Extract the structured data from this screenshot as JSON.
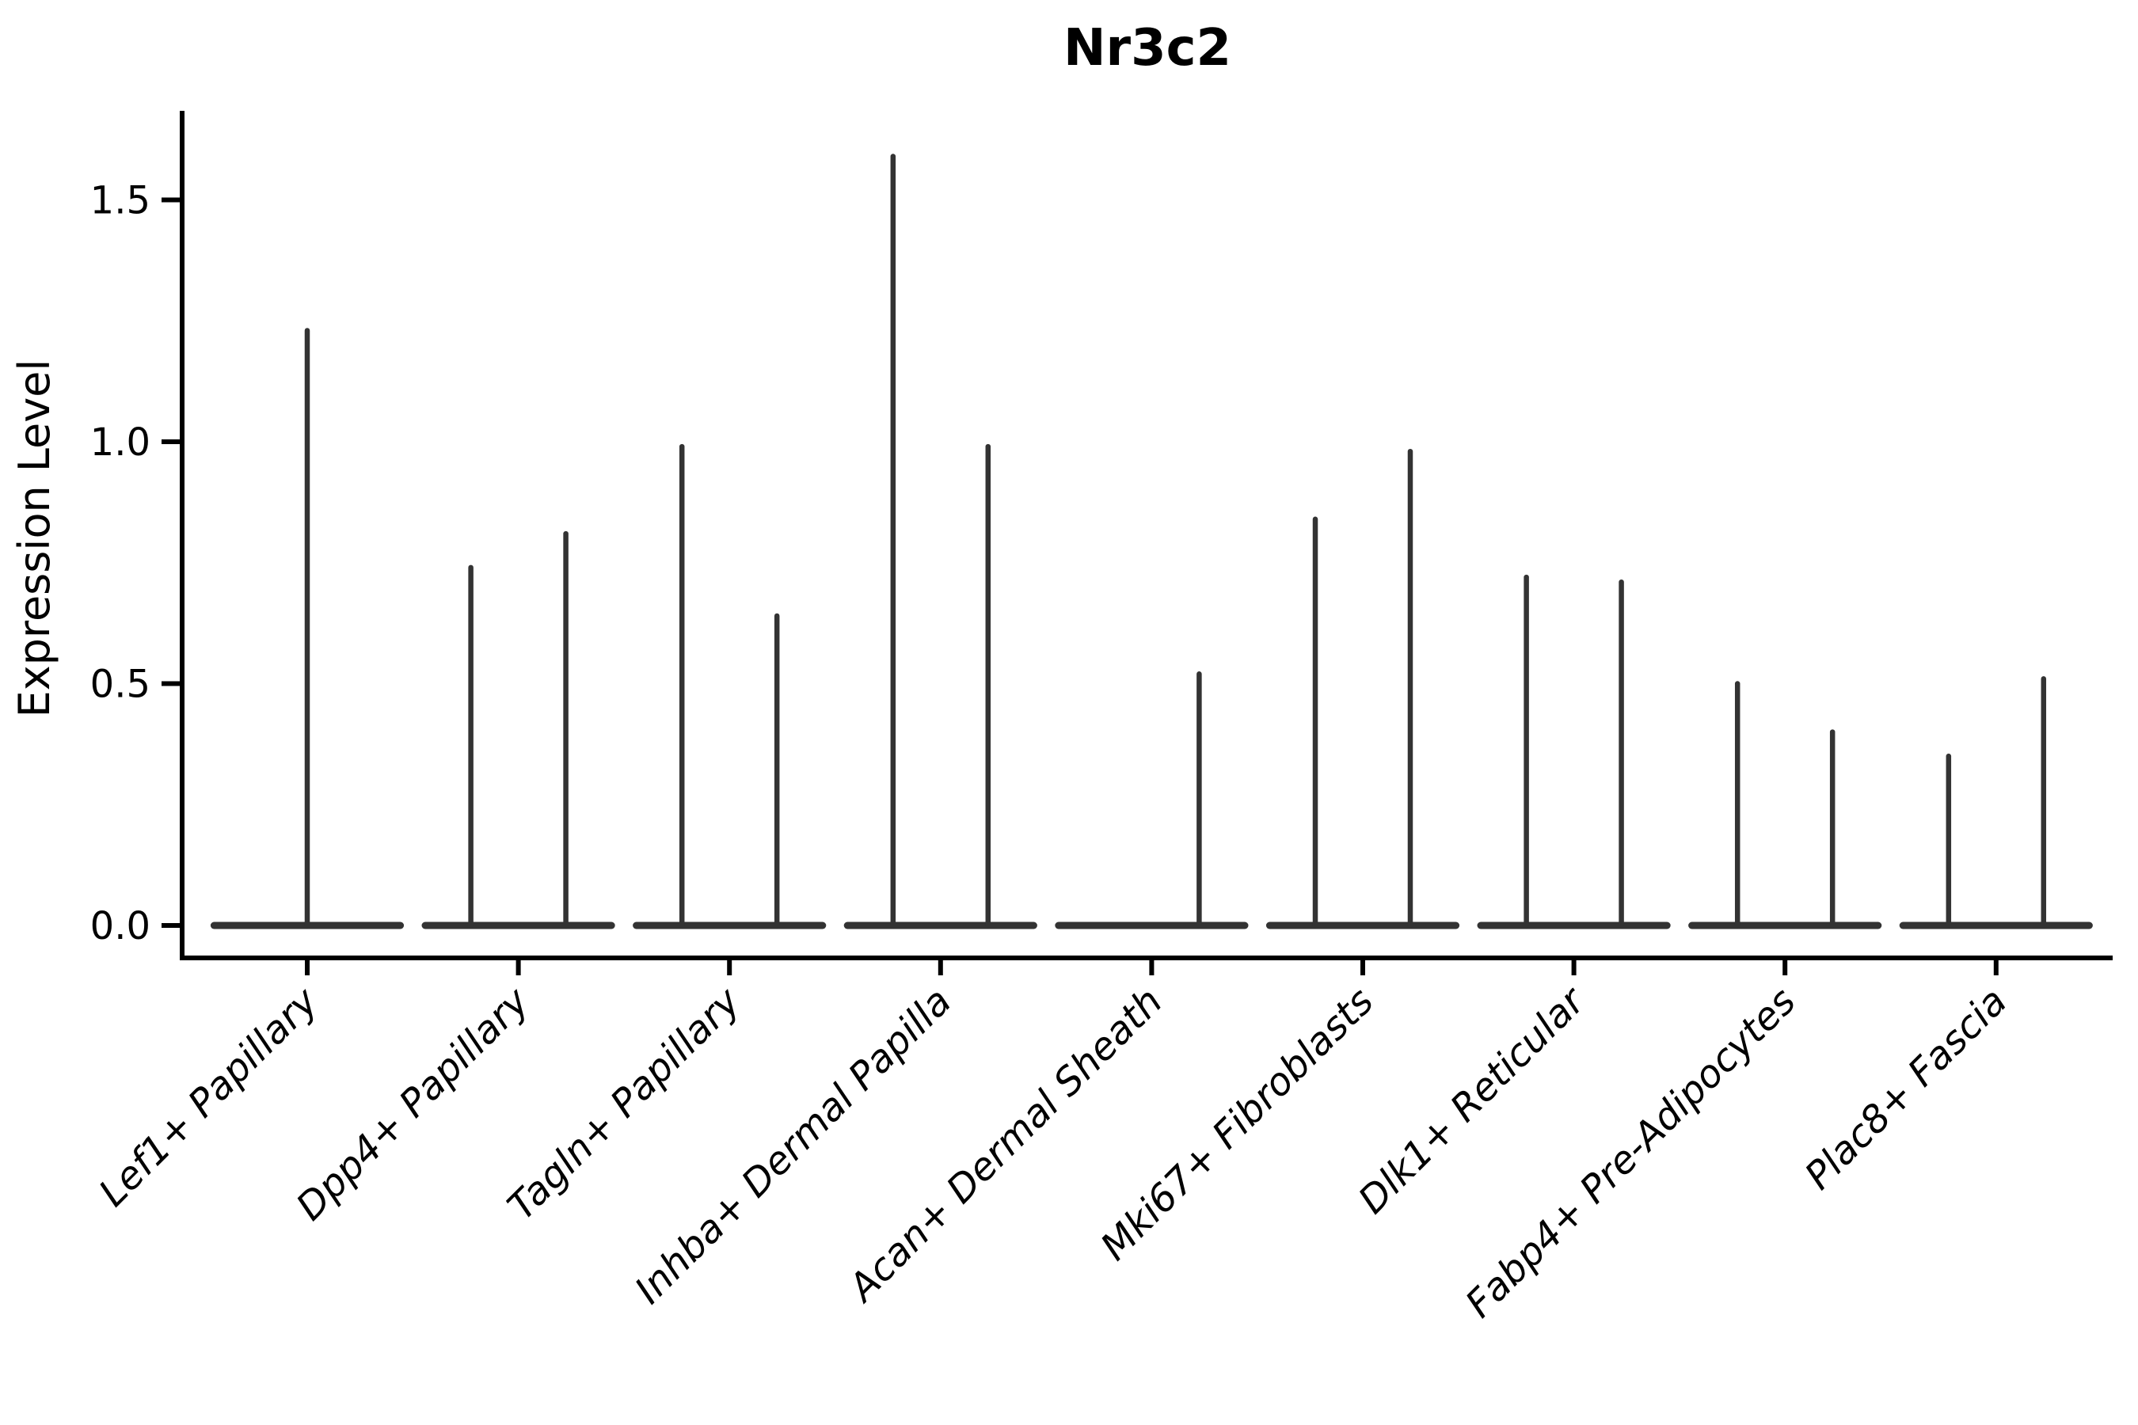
{
  "figure": {
    "title": "Nr3c2"
  },
  "y_axis": {
    "label": "Expression Level",
    "tick_labels": [
      "0.0",
      "0.5",
      "1.0",
      "1.5"
    ]
  },
  "chart_data": {
    "type": "violin",
    "title": "Nr3c2",
    "xlabel": "",
    "ylabel": "Expression Level",
    "ylim": [
      0,
      1.68
    ],
    "yticks": [
      0.0,
      0.5,
      1.0,
      1.5
    ],
    "grid": false,
    "legend": null,
    "xtick_rotation_deg": 45,
    "line_color": "#333333",
    "axis_color": "#000000",
    "background": "#ffffff",
    "categories": [
      "Lef1+ Papillary",
      "Dpp4+ Papillary",
      "Tagln+ Papillary",
      "Inhba+ Dermal Papilla",
      "Acan+ Dermal Sheath",
      "Mki67+ Fibroblasts",
      "Dlk1+ Reticular",
      "Fabp4+ Pre-Adipocytes",
      "Plac8+ Fascia"
    ],
    "baseline_value": 0.0,
    "baseline_halfwidth_frac": 0.458,
    "series": [
      {
        "name": "Lef1+ Papillary",
        "violins": [
          {
            "offset_frac": 0.0,
            "max": 1.23
          }
        ]
      },
      {
        "name": "Dpp4+ Papillary",
        "violins": [
          {
            "offset_frac": -0.225,
            "max": 0.74
          },
          {
            "offset_frac": 0.225,
            "max": 0.81
          }
        ]
      },
      {
        "name": "Tagln+ Papillary",
        "violins": [
          {
            "offset_frac": -0.225,
            "max": 0.99
          },
          {
            "offset_frac": 0.225,
            "max": 0.64
          }
        ]
      },
      {
        "name": "Inhba+ Dermal Papilla",
        "violins": [
          {
            "offset_frac": -0.225,
            "max": 1.59
          },
          {
            "offset_frac": 0.225,
            "max": 0.99
          }
        ]
      },
      {
        "name": "Acan+ Dermal Sheath",
        "violins": [
          {
            "offset_frac": 0.225,
            "max": 0.52
          }
        ]
      },
      {
        "name": "Mki67+ Fibroblasts",
        "violins": [
          {
            "offset_frac": -0.225,
            "max": 0.84
          },
          {
            "offset_frac": 0.225,
            "max": 0.98
          }
        ]
      },
      {
        "name": "Dlk1+ Reticular",
        "violins": [
          {
            "offset_frac": -0.225,
            "max": 0.72
          },
          {
            "offset_frac": 0.225,
            "max": 0.71
          }
        ]
      },
      {
        "name": "Fabp4+ Pre-Adipocytes",
        "violins": [
          {
            "offset_frac": -0.225,
            "max": 0.5
          },
          {
            "offset_frac": 0.225,
            "max": 0.4
          }
        ]
      },
      {
        "name": "Plac8+ Fascia",
        "violins": [
          {
            "offset_frac": -0.225,
            "max": 0.35
          },
          {
            "offset_frac": 0.225,
            "max": 0.51
          }
        ]
      }
    ]
  }
}
